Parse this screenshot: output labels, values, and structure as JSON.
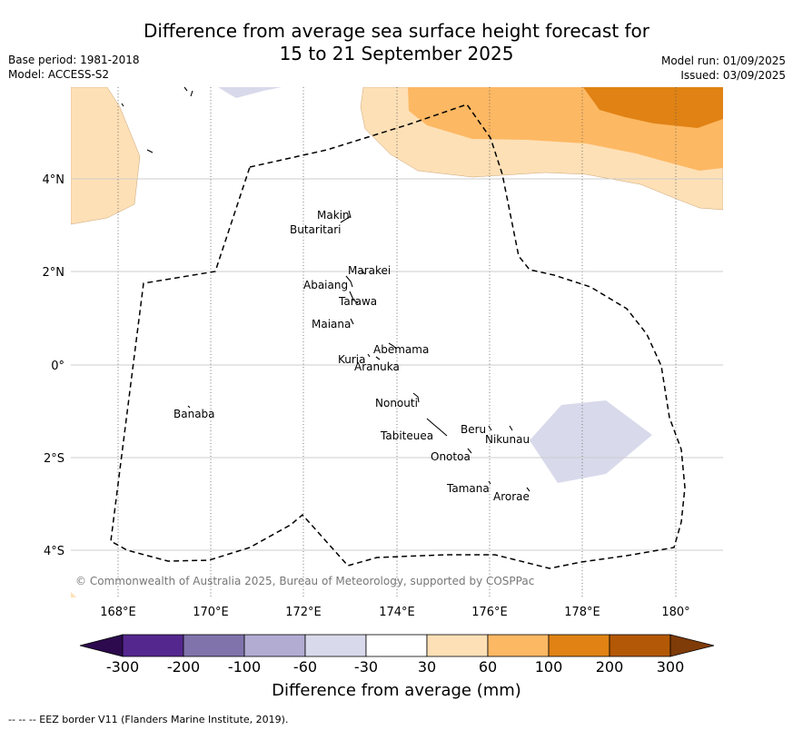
{
  "header": {
    "title_line1": "Difference from average sea surface height forecast for",
    "title_line2": "15 to 21 September 2025",
    "base_period": "Base period: 1981-2018",
    "model": "Model: ACCESS-S2",
    "model_run": "Model run: 01/09/2025",
    "issued": "Issued: 03/09/2025"
  },
  "map": {
    "lon_ticks": [
      "168°E",
      "170°E",
      "172°E",
      "174°E",
      "176°E",
      "178°E",
      "180°"
    ],
    "lat_ticks": [
      "4°N",
      "2°N",
      "0°",
      "2°S",
      "4°S"
    ],
    "copyright": "© Commonwealth of Australia 2025, Bureau of Meteorology, supported by COSPPac",
    "islands": [
      "Makin",
      "Butaritari",
      "Marakei",
      "Abaiang",
      "Tarawa",
      "Maiana",
      "Abemama",
      "Kuria",
      "Aranuka",
      "Nonouti",
      "Banaba",
      "Beru",
      "Nikunau",
      "Tabiteuea",
      "Onotoa",
      "Tamana",
      "Arorae"
    ],
    "border_color": "#000000"
  },
  "colorbar": {
    "labels": [
      "-300",
      "-200",
      "-100",
      "-60",
      "-30",
      "30",
      "60",
      "100",
      "200",
      "300"
    ],
    "colors": [
      "#2d0a4e",
      "#54278f",
      "#8073ac",
      "#b2abd2",
      "#d8daeb",
      "#ffffff",
      "#fee0b6",
      "#fdb863",
      "#e08214",
      "#b35806",
      "#7f3b08"
    ],
    "title": "Difference from average (mm)"
  },
  "footer": {
    "eez_note": "--  --  -- EEZ border V11 (Flanders Marine Institute, 2019)."
  }
}
